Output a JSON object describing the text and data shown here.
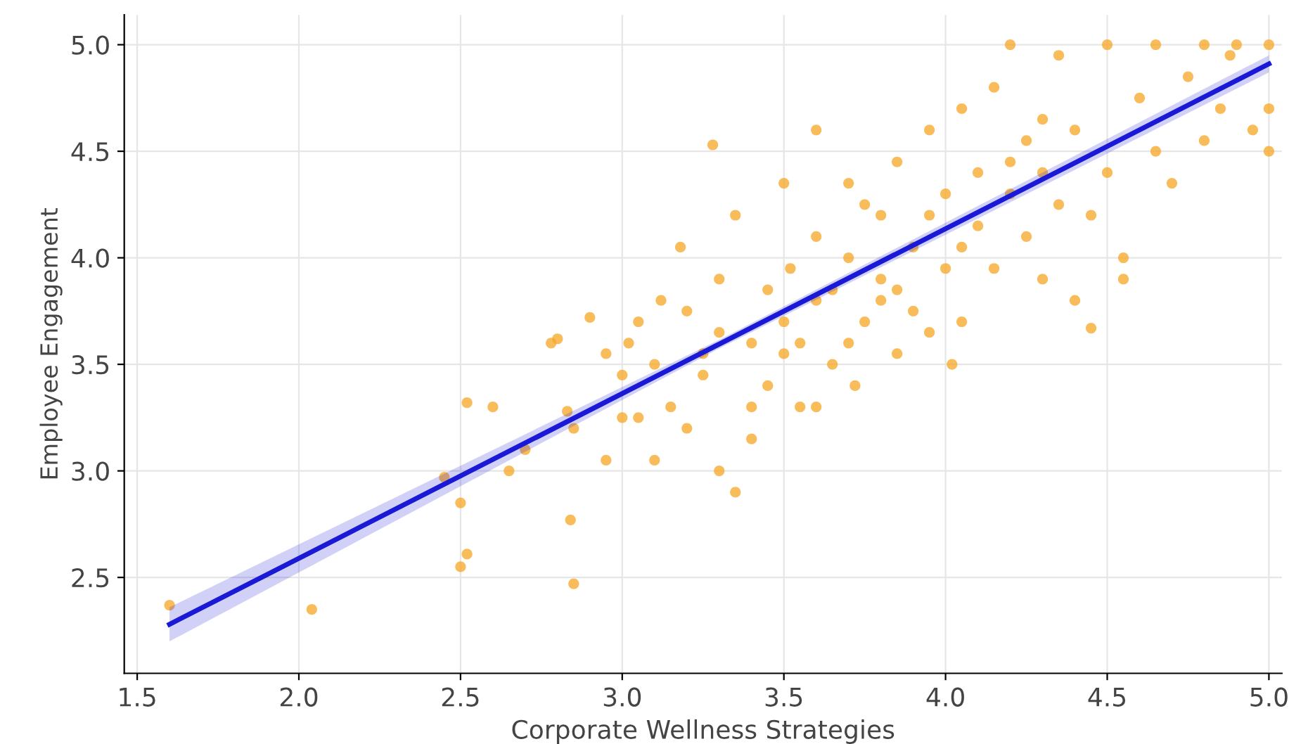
{
  "chart_data": {
    "type": "scatter",
    "xlabel": "Corporate Wellness Strategies",
    "ylabel": "Employee Engagement",
    "xlim": [
      1.46,
      5.04
    ],
    "ylim": [
      2.05,
      5.14
    ],
    "xticks": [
      1.5,
      {
        "value": 2,
        "label": "2.0"
      },
      2.5,
      {
        "value": 3,
        "label": "3.0"
      },
      3.5,
      {
        "value": 4,
        "label": "4.0"
      },
      4.5,
      {
        "value": 5,
        "label": "5.0"
      }
    ],
    "yticks": [
      2.5,
      {
        "value": 3,
        "label": "3.0"
      },
      3.5,
      {
        "value": 4,
        "label": "4.0"
      },
      4.5,
      {
        "value": 5,
        "label": "5.0"
      }
    ],
    "grid": true,
    "series": [
      {
        "color": "#f5a623",
        "marker": "circle",
        "x": [
          1.6,
          2.04,
          2.45,
          2.5,
          2.52,
          2.5,
          2.52,
          2.6,
          2.65,
          2.7,
          2.78,
          2.8,
          2.83,
          2.84,
          2.85,
          2.85,
          2.9,
          2.95,
          3.0,
          3.0,
          3.02,
          3.05,
          3.1,
          3.1,
          3.15,
          3.18,
          3.2,
          3.2,
          3.25,
          3.28,
          3.3,
          3.3,
          3.35,
          3.35,
          3.4,
          3.4,
          3.45,
          3.45,
          3.5,
          3.5,
          3.52,
          3.55,
          3.55,
          3.6,
          3.6,
          3.65,
          3.7,
          3.7,
          3.72,
          3.75,
          3.8,
          3.8,
          3.85,
          3.85,
          3.9,
          3.9,
          3.95,
          3.95,
          4.0,
          4.0,
          4.02,
          4.05,
          4.05,
          4.1,
          4.1,
          4.15,
          4.15,
          4.2,
          4.2,
          4.25,
          4.3,
          4.3,
          4.35,
          4.35,
          4.4,
          4.4,
          4.45,
          4.45,
          4.5,
          4.5,
          4.55,
          4.55,
          4.6,
          4.65,
          4.65,
          4.7,
          4.75,
          4.8,
          4.8,
          4.85,
          4.9,
          4.95,
          5.0,
          5.0,
          5.0,
          4.88,
          3.6,
          3.4,
          3.25,
          3.3,
          3.6,
          3.65,
          3.75,
          3.85,
          3.95,
          4.2,
          4.3,
          3.05,
          2.95,
          3.12,
          3.5,
          3.7,
          3.8,
          4.05,
          4.25
        ],
        "values": [
          2.37,
          2.35,
          2.97,
          2.85,
          3.32,
          2.55,
          2.61,
          3.3,
          3.0,
          3.1,
          3.6,
          3.62,
          3.28,
          2.77,
          2.47,
          3.2,
          3.72,
          3.05,
          3.45,
          3.25,
          3.6,
          3.7,
          3.05,
          3.5,
          3.3,
          4.05,
          3.2,
          3.75,
          3.55,
          4.53,
          3.9,
          3.0,
          2.9,
          4.2,
          3.6,
          3.15,
          3.85,
          3.4,
          4.35,
          3.7,
          3.95,
          3.3,
          3.6,
          4.6,
          3.8,
          3.5,
          4.35,
          4.0,
          3.4,
          3.7,
          4.2,
          3.9,
          4.45,
          3.55,
          4.05,
          3.75,
          4.6,
          4.2,
          4.3,
          3.95,
          3.5,
          3.7,
          4.7,
          4.15,
          4.4,
          4.8,
          3.95,
          5.0,
          4.45,
          4.1,
          4.65,
          3.9,
          4.25,
          4.95,
          4.6,
          3.8,
          4.2,
          3.67,
          5.0,
          4.4,
          4.0,
          3.9,
          4.75,
          5.0,
          4.5,
          4.35,
          4.85,
          5.0,
          4.55,
          4.7,
          5.0,
          4.6,
          5.0,
          4.7,
          4.5,
          4.95,
          3.3,
          3.3,
          3.45,
          3.65,
          4.1,
          3.85,
          4.25,
          3.85,
          3.65,
          4.3,
          4.4,
          3.25,
          3.55,
          3.8,
          3.55,
          3.6,
          3.8,
          4.05,
          4.55
        ]
      },
      {
        "type": "line",
        "color": "#1a1ad6",
        "marker": "none",
        "line_style": "solid",
        "x": [
          1.6,
          3.3,
          5.0
        ],
        "values": [
          2.28,
          3.595,
          4.91
        ],
        "lower": [
          2.2,
          3.575,
          4.87
        ],
        "upper": [
          2.36,
          3.615,
          4.95
        ]
      }
    ]
  }
}
